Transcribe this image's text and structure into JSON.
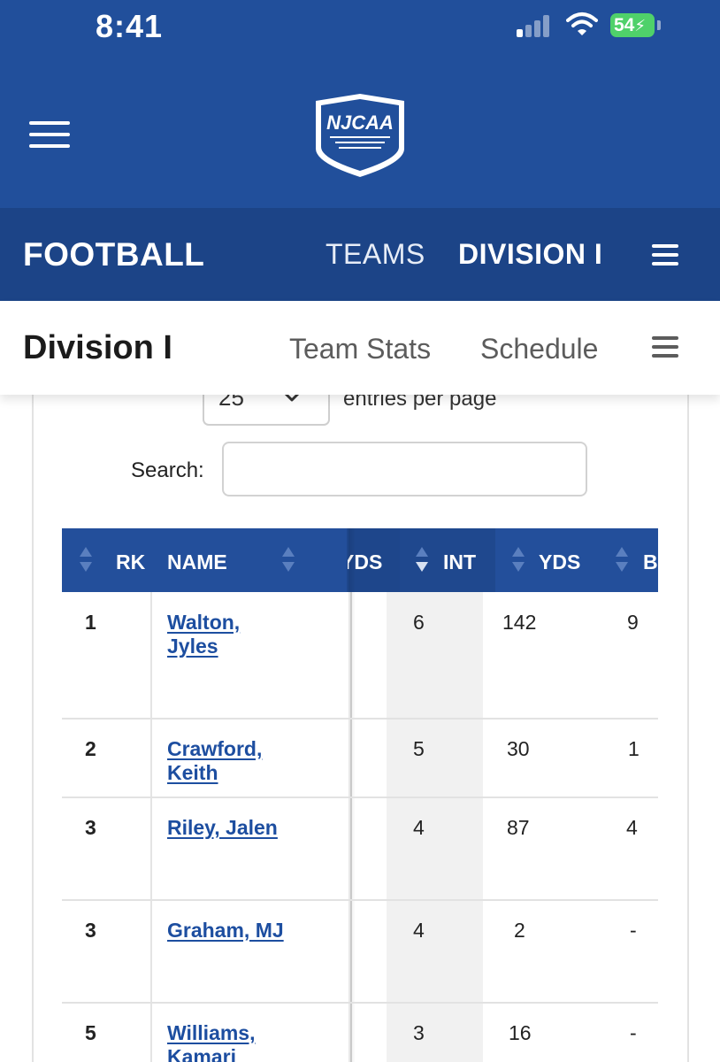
{
  "status_bar": {
    "time": "8:41",
    "battery": "54"
  },
  "header": {
    "logo_label": "NJCAA"
  },
  "nav": {
    "title": "FOOTBALL",
    "links": [
      "TEAMS",
      "DIVISION I"
    ]
  },
  "subnav": {
    "title": "Division I",
    "links": [
      "Team Stats",
      "Schedule"
    ]
  },
  "controls": {
    "entries_value": "25",
    "entries_label": "entries per page",
    "search_label": "Search:",
    "search_value": ""
  },
  "table": {
    "columns": [
      "RK",
      "NAME",
      "YDS",
      "INT",
      "YDS",
      "B"
    ],
    "rows": [
      {
        "rk": "1",
        "name_line1": "Walton,",
        "name_line2": "Jyles",
        "int": "6",
        "yds": "142",
        "b": "9"
      },
      {
        "rk": "2",
        "name_line1": "Crawford,",
        "name_line2": "Keith",
        "int": "5",
        "yds": "30",
        "b": "1"
      },
      {
        "rk": "3",
        "name_line1": "Riley, Jalen",
        "name_line2": "",
        "int": "4",
        "yds": "87",
        "b": "4"
      },
      {
        "rk": "3",
        "name_line1": "Graham, MJ",
        "name_line2": "",
        "int": "4",
        "yds": "2",
        "b": "-"
      },
      {
        "rk": "5",
        "name_line1": "Williams,",
        "name_line2": "Kamari",
        "int": "3",
        "yds": "16",
        "b": "-"
      }
    ]
  },
  "colors": {
    "header_blue": "#214f9b",
    "nav_blue": "#1c4487",
    "link_blue": "#1d4ea0",
    "battery_green": "#4fd16a"
  }
}
